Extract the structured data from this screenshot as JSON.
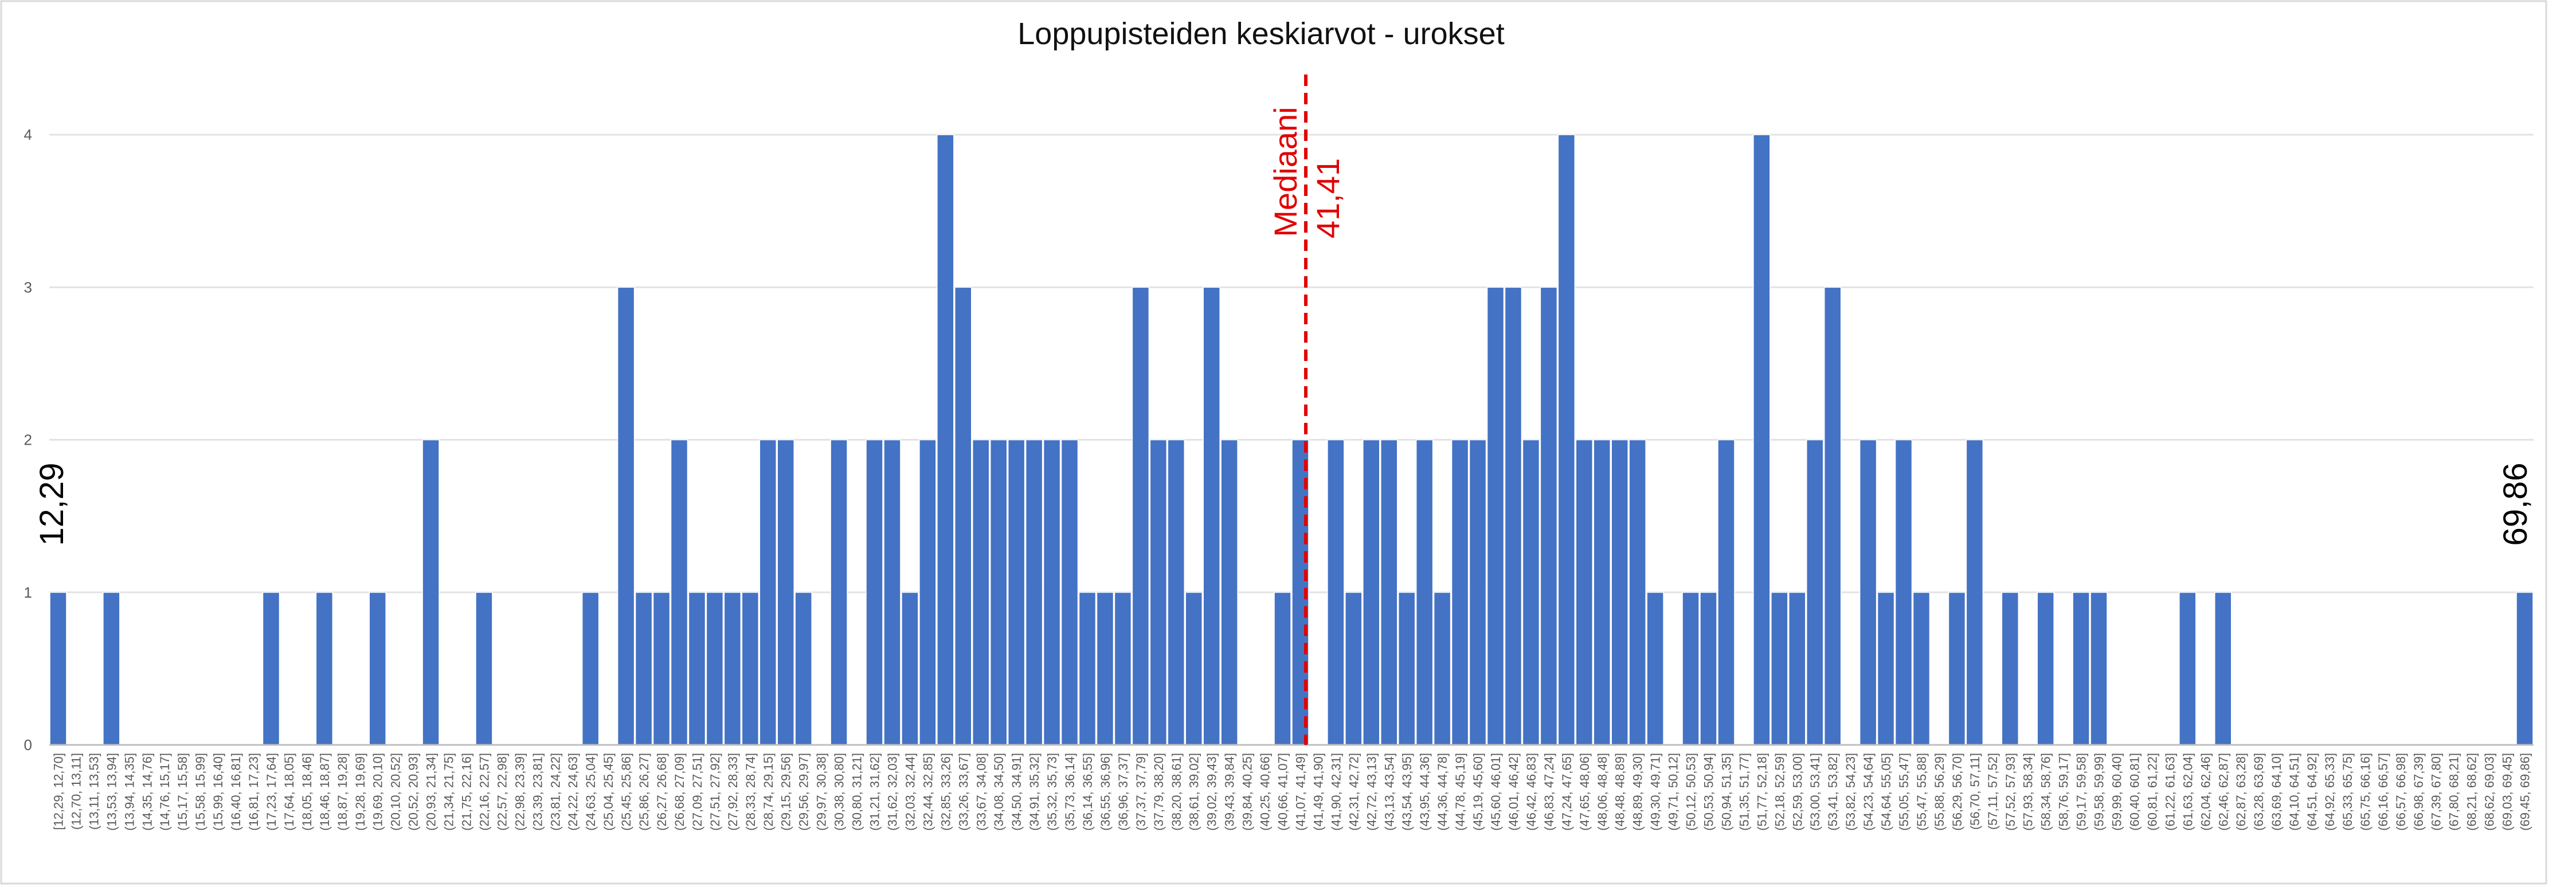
{
  "chart_data": {
    "type": "bar",
    "title": "Loppupisteiden keskiarvot - urokset",
    "xlabel": "",
    "ylabel": "",
    "ylim": [
      0,
      4.5
    ],
    "yticks": [
      0,
      1,
      2,
      3,
      4
    ],
    "grid": true,
    "legend": "none",
    "bar_color": "#4472c4",
    "median_line_color": "#e00000",
    "categories": [
      "[12,29, 12,70]",
      "(12,70, 13,11]",
      "(13,11, 13,53]",
      "(13,53, 13,94]",
      "(13,94, 14,35]",
      "(14,35, 14,76]",
      "(14,76, 15,17]",
      "(15,17, 15,58]",
      "(15,58, 15,99]",
      "(15,99, 16,40]",
      "(16,40, 16,81]",
      "(16,81, 17,23]",
      "(17,23, 17,64]",
      "(17,64, 18,05]",
      "(18,05, 18,46]",
      "(18,46, 18,87]",
      "(18,87, 19,28]",
      "(19,28, 19,69]",
      "(19,69, 20,10]",
      "(20,10, 20,52]",
      "(20,52, 20,93]",
      "(20,93, 21,34]",
      "(21,34, 21,75]",
      "(21,75, 22,16]",
      "(22,16, 22,57]",
      "(22,57, 22,98]",
      "(22,98, 23,39]",
      "(23,39, 23,81]",
      "(23,81, 24,22]",
      "(24,22, 24,63]",
      "(24,63, 25,04]",
      "(25,04, 25,45]",
      "(25,45, 25,86]",
      "(25,86, 26,27]",
      "(26,27, 26,68]",
      "(26,68, 27,09]",
      "(27,09, 27,51]",
      "(27,51, 27,92]",
      "(27,92, 28,33]",
      "(28,33, 28,74]",
      "(28,74, 29,15]",
      "(29,15, 29,56]",
      "(29,56, 29,97]",
      "(29,97, 30,38]",
      "(30,38, 30,80]",
      "(30,80, 31,21]",
      "(31,21, 31,62]",
      "(31,62, 32,03]",
      "(32,03, 32,44]",
      "(32,44, 32,85]",
      "(32,85, 33,26]",
      "(33,26, 33,67]",
      "(33,67, 34,08]",
      "(34,08, 34,50]",
      "(34,50, 34,91]",
      "(34,91, 35,32]",
      "(35,32, 35,73]",
      "(35,73, 36,14]",
      "(36,14, 36,55]",
      "(36,55, 36,96]",
      "(36,96, 37,37]",
      "(37,37, 37,79]",
      "(37,79, 38,20]",
      "(38,20, 38,61]",
      "(38,61, 39,02]",
      "(39,02, 39,43]",
      "(39,43, 39,84]",
      "(39,84, 40,25]",
      "(40,25, 40,66]",
      "(40,66, 41,07]",
      "(41,07, 41,49]",
      "(41,49, 41,90]",
      "(41,90, 42,31]",
      "(42,31, 42,72]",
      "(42,72, 43,13]",
      "(43,13, 43,54]",
      "(43,54, 43,95]",
      "(43,95, 44,36]",
      "(44,36, 44,78]",
      "(44,78, 45,19]",
      "(45,19, 45,60]",
      "(45,60, 46,01]",
      "(46,01, 46,42]",
      "(46,42, 46,83]",
      "(46,83, 47,24]",
      "(47,24, 47,65]",
      "(47,65, 48,06]",
      "(48,06, 48,48]",
      "(48,48, 48,89]",
      "(48,89, 49,30]",
      "(49,30, 49,71]",
      "(49,71, 50,12]",
      "(50,12, 50,53]",
      "(50,53, 50,94]",
      "(50,94, 51,35]",
      "(51,35, 51,77]",
      "(51,77, 52,18]",
      "(52,18, 52,59]",
      "(52,59, 53,00]",
      "(53,00, 53,41]",
      "(53,41, 53,82]",
      "(53,82, 54,23]",
      "(54,23, 54,64]",
      "(54,64, 55,05]",
      "(55,05, 55,47]",
      "(55,47, 55,88]",
      "(55,88, 56,29]",
      "(56,29, 56,70]",
      "(56,70, 57,11]",
      "(57,11, 57,52]",
      "(57,52, 57,93]",
      "(57,93, 58,34]",
      "(58,34, 58,76]",
      "(58,76, 59,17]",
      "(59,17, 59,58]",
      "(59,58, 59,99]",
      "(59,99, 60,40]",
      "(60,40, 60,81]",
      "(60,81, 61,22]",
      "(61,22, 61,63]",
      "(61,63, 62,04]",
      "(62,04, 62,46]",
      "(62,46, 62,87]",
      "(62,87, 63,28]",
      "(63,28, 63,69]",
      "(63,69, 64,10]",
      "(64,10, 64,51]",
      "(64,51, 64,92]",
      "(64,92, 65,33]",
      "(65,33, 65,75]",
      "(65,75, 66,16]",
      "(66,16, 66,57]",
      "(66,57, 66,98]",
      "(66,98, 67,39]",
      "(67,39, 67,80]",
      "(67,80, 68,21]",
      "(68,21, 68,62]",
      "(68,62, 69,03]",
      "(69,03, 69,45]",
      "(69,45, 69,86]"
    ],
    "values": [
      1,
      0,
      0,
      1,
      0,
      0,
      0,
      0,
      0,
      0,
      0,
      0,
      1,
      0,
      0,
      1,
      0,
      0,
      1,
      0,
      0,
      2,
      0,
      0,
      1,
      0,
      0,
      0,
      0,
      0,
      1,
      0,
      3,
      1,
      1,
      2,
      1,
      1,
      1,
      1,
      2,
      2,
      1,
      0,
      2,
      0,
      2,
      2,
      1,
      2,
      4,
      3,
      2,
      2,
      2,
      2,
      2,
      2,
      1,
      1,
      1,
      3,
      2,
      2,
      1,
      3,
      2,
      0,
      0,
      1,
      2,
      0,
      2,
      1,
      2,
      2,
      1,
      2,
      1,
      2,
      2,
      3,
      3,
      2,
      3,
      4,
      2,
      2,
      2,
      2,
      1,
      0,
      1,
      1,
      2,
      0,
      4,
      1,
      1,
      2,
      3,
      0,
      2,
      1,
      2,
      1,
      0,
      1,
      2,
      0,
      1,
      0,
      1,
      0,
      1,
      1,
      0,
      0,
      0,
      0,
      1,
      0,
      1,
      0,
      0,
      0,
      0,
      0,
      0,
      0,
      0,
      0,
      0,
      0,
      0,
      0,
      0,
      0,
      0,
      1
    ],
    "annotations": {
      "min_label": "12,29",
      "max_label": "69,86",
      "median_label": "Mediaani",
      "median_value_label": "41,41",
      "median_value": 41.41
    }
  }
}
